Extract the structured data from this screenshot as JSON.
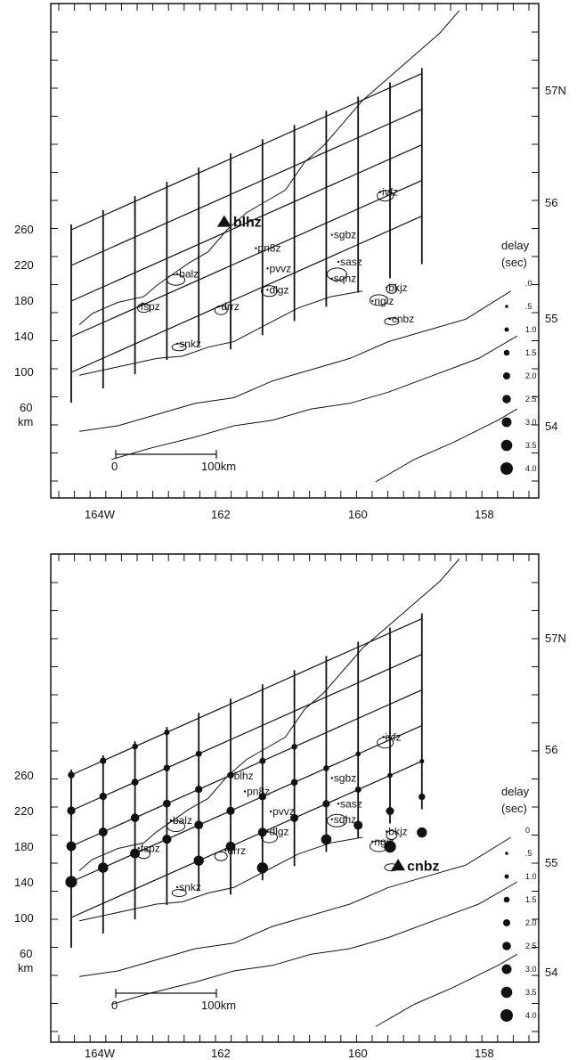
{
  "panels": [
    {
      "id": "top",
      "source_station": "blhz",
      "stations": [
        {
          "name": "blhz",
          "lon": -162.15,
          "lat": 55.82,
          "source": true
        },
        {
          "name": "pn8z",
          "lon": -161.63,
          "lat": 55.55
        },
        {
          "name": "pvvz",
          "lon": -161.45,
          "lat": 55.37
        },
        {
          "name": "balz",
          "lon": -162.85,
          "lat": 55.32
        },
        {
          "name": "dlgz",
          "lon": -161.45,
          "lat": 55.18
        },
        {
          "name": "drrz",
          "lon": -162.2,
          "lat": 55.03
        },
        {
          "name": "fspz",
          "lon": -163.45,
          "lat": 55.03
        },
        {
          "name": "snkz",
          "lon": -162.85,
          "lat": 54.7
        },
        {
          "name": "sgbz",
          "lon": -160.45,
          "lat": 55.67
        },
        {
          "name": "sasz",
          "lon": -160.35,
          "lat": 55.43
        },
        {
          "name": "sqhz",
          "lon": -160.45,
          "lat": 55.28
        },
        {
          "name": "ngiz",
          "lon": -159.82,
          "lat": 55.08
        },
        {
          "name": "bkjz",
          "lon": -159.6,
          "lat": 55.2
        },
        {
          "name": "cnbz",
          "lon": -159.55,
          "lat": 54.92
        },
        {
          "name": "ivfz",
          "lon": -159.7,
          "lat": 56.05
        }
      ],
      "grid_dots": []
    },
    {
      "id": "bottom",
      "source_station": "cnbz",
      "stations": [
        {
          "name": "blhz",
          "lon": -162.0,
          "lat": 55.72
        },
        {
          "name": "pn8z",
          "lon": -161.8,
          "lat": 55.58
        },
        {
          "name": "pvvz",
          "lon": -161.4,
          "lat": 55.4
        },
        {
          "name": "balz",
          "lon": -162.95,
          "lat": 55.32
        },
        {
          "name": "dlgz",
          "lon": -161.45,
          "lat": 55.22
        },
        {
          "name": "drrz",
          "lon": -162.1,
          "lat": 55.05
        },
        {
          "name": "fspz",
          "lon": -163.45,
          "lat": 55.07
        },
        {
          "name": "snkz",
          "lon": -162.85,
          "lat": 54.72
        },
        {
          "name": "sgbz",
          "lon": -160.45,
          "lat": 55.7
        },
        {
          "name": "sasz",
          "lon": -160.35,
          "lat": 55.47
        },
        {
          "name": "sqhz",
          "lon": -160.45,
          "lat": 55.33
        },
        {
          "name": "ngiz",
          "lon": -159.82,
          "lat": 55.13
        },
        {
          "name": "bkjz",
          "lon": -159.6,
          "lat": 55.22
        },
        {
          "name": "cnbz",
          "lon": -159.45,
          "lat": 54.95,
          "source": true
        },
        {
          "name": "ivfz",
          "lon": -159.65,
          "lat": 56.07
        }
      ],
      "grid_dots": [
        {
          "i": 0,
          "j": 0,
          "d": 1.8
        },
        {
          "i": 0,
          "j": 1,
          "d": 2.4
        },
        {
          "i": 0,
          "j": 2,
          "d": 3.0
        },
        {
          "i": 0,
          "j": 3,
          "d": 3.9
        },
        {
          "i": 1,
          "j": 0,
          "d": 1.6
        },
        {
          "i": 1,
          "j": 1,
          "d": 2.1
        },
        {
          "i": 1,
          "j": 2,
          "d": 2.7
        },
        {
          "i": 1,
          "j": 3,
          "d": 3.3
        },
        {
          "i": 2,
          "j": 0,
          "d": 1.4
        },
        {
          "i": 2,
          "j": 1,
          "d": 1.9
        },
        {
          "i": 2,
          "j": 2,
          "d": 2.5
        },
        {
          "i": 2,
          "j": 3,
          "d": 3.1
        },
        {
          "i": 3,
          "j": 0,
          "d": 1.2
        },
        {
          "i": 3,
          "j": 1,
          "d": 1.7
        },
        {
          "i": 3,
          "j": 2,
          "d": 2.2
        },
        {
          "i": 3,
          "j": 3,
          "d": 2.8
        },
        {
          "i": 4,
          "j": 1,
          "d": 1.5
        },
        {
          "i": 4,
          "j": 2,
          "d": 2.0
        },
        {
          "i": 4,
          "j": 3,
          "d": 2.6
        },
        {
          "i": 4,
          "j": 4,
          "d": 3.2
        },
        {
          "i": 5,
          "j": 2,
          "d": 1.8
        },
        {
          "i": 5,
          "j": 3,
          "d": 2.4
        },
        {
          "i": 5,
          "j": 4,
          "d": 3.0
        },
        {
          "i": 6,
          "j": 2,
          "d": 1.5
        },
        {
          "i": 6,
          "j": 3,
          "d": 2.1
        },
        {
          "i": 6,
          "j": 4,
          "d": 2.7
        },
        {
          "i": 6,
          "j": 5,
          "d": 3.6
        },
        {
          "i": 7,
          "j": 2,
          "d": 1.3
        },
        {
          "i": 7,
          "j": 3,
          "d": 1.8
        },
        {
          "i": 7,
          "j": 4,
          "d": 2.3
        },
        {
          "i": 8,
          "j": 3,
          "d": 1.4
        },
        {
          "i": 8,
          "j": 4,
          "d": 2.0
        },
        {
          "i": 8,
          "j": 5,
          "d": 3.3
        },
        {
          "i": 9,
          "j": 3,
          "d": 1.0
        },
        {
          "i": 9,
          "j": 4,
          "d": 1.5
        },
        {
          "i": 9,
          "j": 5,
          "d": 2.7
        },
        {
          "i": 10,
          "j": 4,
          "d": 1.1
        },
        {
          "i": 10,
          "j": 5,
          "d": 2.3
        },
        {
          "i": 10,
          "j": 6,
          "d": 4.0
        },
        {
          "i": 11,
          "j": 4,
          "d": 0.8
        },
        {
          "i": 11,
          "j": 5,
          "d": 1.7
        },
        {
          "i": 11,
          "j": 6,
          "d": 3.2
        }
      ]
    }
  ],
  "axes": {
    "lon_ticks": [
      {
        "lon": -164,
        "label": "164W"
      },
      {
        "lon": -162,
        "label": "162"
      },
      {
        "lon": -160,
        "label": "160"
      },
      {
        "lon": -158,
        "label": "158"
      }
    ],
    "lat_ticks": [
      {
        "lat": 57,
        "label": "57N"
      },
      {
        "lat": 56,
        "label": "56"
      },
      {
        "lat": 55,
        "label": "55"
      },
      {
        "lat": 54,
        "label": "54"
      }
    ],
    "km_labels": [
      "260",
      "220",
      "180",
      "140",
      "100",
      "60"
    ],
    "km_unit": "km"
  },
  "scale_bar": {
    "start_label": "0",
    "end_label": "100km"
  },
  "legend": {
    "title": "delay",
    "unit": "(sec)",
    "top_entries": [
      ".0",
      ".5",
      "1.0",
      "1.5",
      "2.0",
      "2.5",
      "3.0",
      "3.5",
      "4.0"
    ],
    "bottom_entries": [
      "0",
      ".5",
      "1.0",
      "1.5",
      "2.0",
      "2.5",
      "3.0",
      "3.5",
      "4.0"
    ]
  },
  "colors": {
    "ink": "#111111",
    "paper": "#ffffff"
  }
}
